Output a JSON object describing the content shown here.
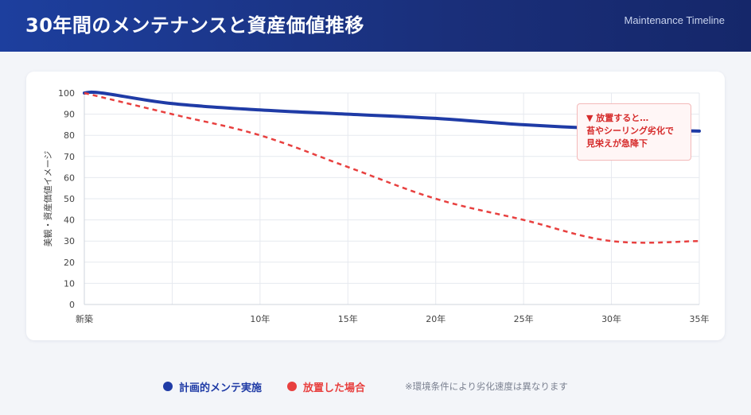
{
  "header": {
    "title": "30年間のメンテナンスと資産価値推移",
    "subtitle": "Maintenance Timeline"
  },
  "colors": {
    "planned": "#1f3ba6",
    "neglected": "#e8403f",
    "grid": "#e6e9ef",
    "axis_text": "#444444"
  },
  "chart_data": {
    "type": "line",
    "title": "",
    "xlabel": "",
    "ylabel": "美観・資産価値イメージ",
    "x": [
      0,
      5,
      10,
      15,
      20,
      25,
      30,
      35
    ],
    "x_tick_labels": [
      "新築",
      "",
      "10年",
      "15年",
      "20年",
      "25年",
      "30年",
      "35年"
    ],
    "y_ticks": [
      0,
      10,
      20,
      30,
      40,
      50,
      60,
      70,
      80,
      90,
      100
    ],
    "xlim": [
      0,
      35
    ],
    "ylim": [
      0,
      100
    ],
    "grid": true,
    "series": [
      {
        "name": "計画的メンテ実施",
        "style": "solid",
        "x": [
          0,
          1,
          5,
          10,
          15,
          20,
          25,
          30,
          35
        ],
        "values": [
          100,
          100,
          95,
          92,
          90,
          88,
          85,
          83,
          82
        ]
      },
      {
        "name": "放置した場合",
        "style": "dashed",
        "x": [
          0,
          5,
          10,
          15,
          20,
          25,
          30,
          35
        ],
        "values": [
          100,
          90,
          80,
          65,
          50,
          40,
          30,
          30
        ]
      }
    ],
    "annotation": {
      "lines": [
        "▼ 放置すると…",
        "苔やシーリング劣化で",
        "見栄えが急降下"
      ]
    }
  },
  "legend": {
    "items": [
      {
        "label": "計画的メンテ実施"
      },
      {
        "label": "放置した場合"
      }
    ],
    "note": "※環境条件により劣化速度は異なります"
  }
}
